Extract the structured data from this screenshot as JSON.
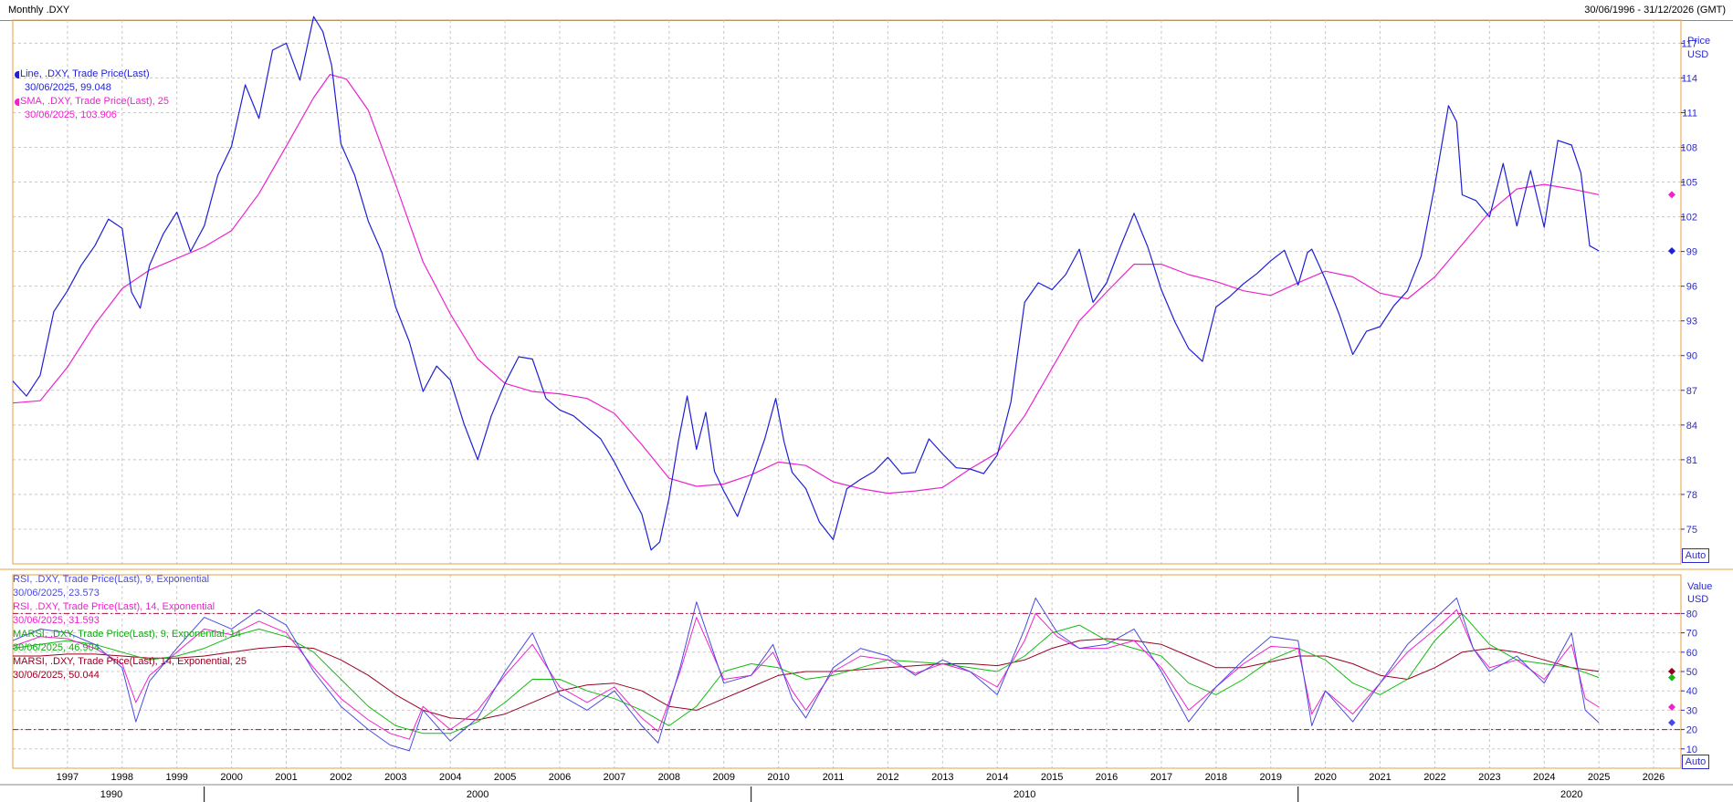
{
  "header": {
    "title": "Monthly .DXY",
    "date_range": "30/06/1996 - 31/12/2026 (GMT)"
  },
  "colors": {
    "price_line": "#1f1fd6",
    "sma_line": "#ee22cc",
    "rsi9": "#4a4ae0",
    "rsi14": "#ee22cc",
    "marsi9": "#11bb11",
    "marsi14": "#990022",
    "reference_lines": "#aa1144",
    "accent": "#2a2ad0"
  },
  "price_panel": {
    "axis_title": "Price",
    "axis_unit": "USD",
    "auto_label": "Auto",
    "legend": [
      {
        "name": "Line, .DXY, Trade Price(Last)",
        "value": "30/06/2025, 99.048"
      },
      {
        "name": "SMA, .DXY, Trade Price(Last),  25",
        "value": "30/06/2025, 103.906"
      }
    ]
  },
  "indicator_panel": {
    "axis_title": "Value",
    "axis_unit": "USD",
    "auto_label": "Auto",
    "legend": [
      {
        "name": "RSI, .DXY, Trade Price(Last),  9, Exponential",
        "value": "30/06/2025, 23.573"
      },
      {
        "name": "RSI, .DXY, Trade Price(Last),  14, Exponential",
        "value": "30/06/2025, 31.593"
      },
      {
        "name": "MARSI, .DXY, Trade Price(Last),  9, Exponential, 14",
        "value": "30/06/2025, 46.904"
      },
      {
        "name": "MARSI, .DXY, Trade Price(Last),  14, Exponential, 25",
        "value": "30/06/2025, 50.044"
      }
    ]
  },
  "chart_data": [
    {
      "type": "line",
      "title": "Monthly .DXY",
      "ylabel": "Price USD",
      "ylim": [
        72,
        119
      ],
      "yticks": [
        75,
        78,
        81,
        84,
        87,
        90,
        93,
        96,
        99,
        102,
        105,
        108,
        111,
        114,
        117
      ],
      "xlim": [
        1996.5,
        2027.0
      ],
      "grid": true,
      "legend_position": "top-left",
      "series": [
        {
          "name": "Line, .DXY, Trade Price(Last)",
          "x": [
            1996.5,
            1996.75,
            1997.0,
            1997.25,
            1997.5,
            1997.75,
            1998.0,
            1998.25,
            1998.5,
            1998.67,
            1998.83,
            1999.0,
            1999.25,
            1999.5,
            1999.75,
            2000.0,
            2000.25,
            2000.5,
            2000.75,
            2001.0,
            2001.25,
            2001.5,
            2001.75,
            2002.0,
            2002.17,
            2002.33,
            2002.5,
            2002.75,
            2003.0,
            2003.25,
            2003.5,
            2003.75,
            2004.0,
            2004.25,
            2004.5,
            2004.75,
            2005.0,
            2005.25,
            2005.5,
            2005.75,
            2006.0,
            2006.25,
            2006.5,
            2006.75,
            2007.0,
            2007.25,
            2007.5,
            2007.75,
            2008.0,
            2008.17,
            2008.33,
            2008.5,
            2008.67,
            2008.83,
            2009.0,
            2009.17,
            2009.33,
            2009.5,
            2009.75,
            2010.0,
            2010.25,
            2010.45,
            2010.6,
            2010.75,
            2011.0,
            2011.25,
            2011.5,
            2011.75,
            2012.0,
            2012.25,
            2012.5,
            2012.75,
            2013.0,
            2013.25,
            2013.5,
            2013.75,
            2014.0,
            2014.25,
            2014.5,
            2014.75,
            2015.0,
            2015.25,
            2015.5,
            2015.75,
            2016.0,
            2016.25,
            2016.5,
            2016.75,
            2017.0,
            2017.25,
            2017.5,
            2017.75,
            2018.0,
            2018.25,
            2018.5,
            2018.75,
            2019.0,
            2019.25,
            2019.5,
            2019.75,
            2020.0,
            2020.17,
            2020.25,
            2020.5,
            2020.75,
            2021.0,
            2021.25,
            2021.5,
            2021.75,
            2022.0,
            2022.25,
            2022.5,
            2022.75,
            2022.9,
            2023.0,
            2023.25,
            2023.5,
            2023.75,
            2024.0,
            2024.25,
            2024.5,
            2024.75,
            2025.0,
            2025.17,
            2025.33,
            2025.5
          ],
          "y": [
            87.8,
            86.5,
            88.3,
            93.8,
            95.6,
            97.8,
            99.5,
            101.8,
            101.0,
            95.5,
            94.1,
            97.8,
            100.5,
            102.4,
            99.0,
            101.2,
            105.6,
            108.1,
            113.4,
            110.5,
            116.4,
            117.0,
            113.8,
            119.3,
            118.0,
            115.1,
            108.3,
            105.6,
            101.6,
            98.9,
            94.2,
            91.2,
            86.9,
            89.1,
            87.9,
            84.1,
            81.0,
            84.8,
            87.6,
            89.9,
            89.7,
            86.3,
            85.3,
            84.8,
            83.8,
            82.8,
            80.8,
            78.5,
            76.3,
            73.2,
            73.9,
            77.7,
            82.6,
            86.5,
            81.9,
            85.1,
            80.0,
            78.3,
            76.1,
            79.4,
            82.8,
            86.3,
            82.6,
            79.9,
            78.5,
            75.6,
            74.1,
            78.5,
            79.3,
            80.0,
            81.2,
            79.8,
            79.9,
            82.8,
            81.5,
            80.3,
            80.2,
            79.8,
            81.4,
            86.0,
            94.6,
            96.3,
            95.7,
            97.0,
            99.2,
            94.6,
            96.3,
            99.4,
            102.3,
            99.4,
            95.7,
            92.9,
            90.6,
            89.5,
            94.2,
            95.1,
            96.2,
            97.1,
            98.2,
            99.1,
            96.1,
            98.9,
            99.2,
            96.6,
            93.6,
            90.1,
            92.1,
            92.5,
            94.3,
            95.6,
            98.6,
            104.7,
            111.6,
            110.2,
            103.9,
            103.4,
            102.0,
            106.6,
            101.2,
            106.0,
            101.1,
            108.6,
            108.2,
            105.8,
            99.5,
            99.048
          ]
        },
        {
          "name": "SMA, .DXY, Trade Price(Last),  25",
          "x": [
            1996.5,
            1997.0,
            1997.5,
            1998.0,
            1998.5,
            1999.0,
            1999.5,
            2000.0,
            2000.5,
            2001.0,
            2001.5,
            2002.0,
            2002.3,
            2002.6,
            2003.0,
            2003.5,
            2004.0,
            2004.5,
            2005.0,
            2005.5,
            2006.0,
            2006.5,
            2007.0,
            2007.5,
            2008.0,
            2008.5,
            2009.0,
            2009.5,
            2010.0,
            2010.5,
            2011.0,
            2011.5,
            2012.0,
            2012.5,
            2013.0,
            2013.5,
            2014.0,
            2014.5,
            2015.0,
            2015.5,
            2016.0,
            2016.5,
            2017.0,
            2017.5,
            2018.0,
            2018.5,
            2019.0,
            2019.5,
            2020.0,
            2020.5,
            2021.0,
            2021.5,
            2022.0,
            2022.5,
            2023.0,
            2023.5,
            2024.0,
            2024.5,
            2025.0,
            2025.5
          ],
          "y": [
            85.9,
            86.1,
            89.0,
            92.7,
            95.8,
            97.4,
            98.4,
            99.4,
            100.8,
            104.0,
            108.1,
            112.3,
            114.3,
            113.9,
            111.2,
            104.8,
            98.1,
            93.6,
            89.7,
            87.6,
            86.9,
            86.7,
            86.3,
            85.0,
            82.3,
            79.4,
            78.7,
            78.9,
            79.7,
            80.8,
            80.5,
            79.1,
            78.5,
            78.1,
            78.3,
            78.6,
            80.2,
            81.6,
            84.8,
            88.9,
            93.0,
            95.5,
            97.9,
            97.9,
            97.0,
            96.4,
            95.6,
            95.2,
            96.3,
            97.3,
            96.8,
            95.4,
            94.9,
            96.8,
            99.6,
            102.4,
            104.4,
            104.8,
            104.4,
            103.906
          ]
        }
      ]
    },
    {
      "type": "line",
      "ylabel": "Value USD",
      "ylim": [
        0,
        100
      ],
      "yticks": [
        10,
        20,
        30,
        40,
        50,
        60,
        70,
        80
      ],
      "reference_lines": [
        20,
        80
      ],
      "xlim": [
        1996.5,
        2027.0
      ],
      "x_tick_labels": [
        "1997",
        "1998",
        "1999",
        "2000",
        "2001",
        "2002",
        "2003",
        "2004",
        "2005",
        "2006",
        "2007",
        "2008",
        "2009",
        "2010",
        "2011",
        "2012",
        "2013",
        "2014",
        "2015",
        "2016",
        "2017",
        "2018",
        "2019",
        "2020",
        "2021",
        "2022",
        "2023",
        "2024",
        "2025",
        "2026"
      ],
      "x_decade_labels": [
        "1990",
        "2000",
        "2010",
        "2020"
      ],
      "grid": true,
      "legend_position": "top-left",
      "series": [
        {
          "name": "RSI, .DXY, Trade Price(Last),  9, Exponential",
          "x": [
            1996.5,
            1997.0,
            1997.5,
            1998.0,
            1998.5,
            1998.75,
            1999.0,
            1999.5,
            2000.0,
            2000.5,
            2001.0,
            2001.5,
            2002.0,
            2002.5,
            2003.0,
            2003.4,
            2003.75,
            2004.0,
            2004.5,
            2005.0,
            2005.5,
            2006.0,
            2006.5,
            2007.0,
            2007.5,
            2008.0,
            2008.3,
            2008.7,
            2009.0,
            2009.5,
            2010.0,
            2010.4,
            2010.75,
            2011.0,
            2011.5,
            2012.0,
            2012.5,
            2013.0,
            2013.5,
            2014.0,
            2014.5,
            2015.0,
            2015.2,
            2015.6,
            2016.0,
            2016.5,
            2017.0,
            2017.5,
            2018.0,
            2018.5,
            2019.0,
            2019.5,
            2020.0,
            2020.25,
            2020.5,
            2021.0,
            2021.5,
            2022.0,
            2022.6,
            2022.9,
            2023.2,
            2023.5,
            2024.0,
            2024.5,
            2025.0,
            2025.25,
            2025.5
          ],
          "y": [
            66,
            72,
            70,
            64,
            52,
            24,
            45,
            62,
            78,
            72,
            82,
            74,
            50,
            32,
            20,
            12,
            9,
            30,
            14,
            26,
            50,
            70,
            38,
            30,
            40,
            22,
            13,
            52,
            86,
            44,
            48,
            64,
            36,
            26,
            52,
            62,
            58,
            48,
            56,
            50,
            38,
            72,
            88,
            70,
            62,
            64,
            72,
            50,
            24,
            42,
            56,
            68,
            66,
            22,
            40,
            24,
            44,
            64,
            80,
            88,
            62,
            50,
            58,
            44,
            70,
            30,
            23.573
          ]
        },
        {
          "name": "RSI, .DXY, Trade Price(Last),  14, Exponential",
          "x": [
            1996.5,
            1997.0,
            1997.5,
            1998.0,
            1998.5,
            1998.75,
            1999.0,
            1999.5,
            2000.0,
            2000.5,
            2001.0,
            2001.5,
            2002.0,
            2002.5,
            2003.0,
            2003.4,
            2003.75,
            2004.0,
            2004.5,
            2005.0,
            2005.5,
            2006.0,
            2006.5,
            2007.0,
            2007.5,
            2008.0,
            2008.3,
            2008.7,
            2009.0,
            2009.5,
            2010.0,
            2010.4,
            2010.75,
            2011.0,
            2011.5,
            2012.0,
            2012.5,
            2013.0,
            2013.5,
            2014.0,
            2014.5,
            2015.0,
            2015.2,
            2015.6,
            2016.0,
            2016.5,
            2017.0,
            2017.5,
            2018.0,
            2018.5,
            2019.0,
            2019.5,
            2020.0,
            2020.25,
            2020.5,
            2021.0,
            2021.5,
            2022.0,
            2022.6,
            2022.9,
            2023.2,
            2023.5,
            2024.0,
            2024.5,
            2025.0,
            2025.25,
            2025.5
          ],
          "y": [
            63,
            68,
            67,
            62,
            54,
            34,
            48,
            60,
            72,
            69,
            76,
            70,
            52,
            36,
            25,
            18,
            15,
            32,
            20,
            30,
            48,
            64,
            42,
            34,
            42,
            26,
            19,
            50,
            78,
            46,
            48,
            60,
            40,
            30,
            50,
            58,
            56,
            49,
            54,
            50,
            42,
            66,
            80,
            68,
            62,
            62,
            66,
            52,
            30,
            42,
            54,
            63,
            62,
            28,
            40,
            28,
            44,
            60,
            74,
            82,
            62,
            52,
            56,
            46,
            64,
            36,
            31.593
          ]
        },
        {
          "name": "MARSI, .DXY, Trade Price(Last),  9, Exponential, 14",
          "x": [
            1996.5,
            1997.0,
            1997.5,
            1998.0,
            1998.5,
            1999.0,
            1999.5,
            2000.0,
            2000.5,
            2001.0,
            2001.5,
            2002.0,
            2002.5,
            2003.0,
            2003.5,
            2004.0,
            2004.5,
            2005.0,
            2005.5,
            2006.0,
            2006.5,
            2007.0,
            2007.5,
            2008.0,
            2008.5,
            2009.0,
            2009.5,
            2010.0,
            2010.5,
            2011.0,
            2011.5,
            2012.0,
            2012.5,
            2013.0,
            2013.5,
            2014.0,
            2014.5,
            2015.0,
            2015.5,
            2016.0,
            2016.5,
            2017.0,
            2017.5,
            2018.0,
            2018.5,
            2019.0,
            2019.5,
            2020.0,
            2020.5,
            2021.0,
            2021.5,
            2022.0,
            2022.5,
            2023.0,
            2023.5,
            2024.0,
            2024.5,
            2025.0,
            2025.5
          ],
          "y": [
            62,
            64,
            66,
            64,
            60,
            56,
            58,
            62,
            68,
            72,
            68,
            60,
            46,
            32,
            22,
            18,
            18,
            24,
            34,
            46,
            46,
            40,
            36,
            30,
            22,
            32,
            50,
            54,
            52,
            46,
            48,
            52,
            56,
            55,
            54,
            52,
            50,
            58,
            70,
            74,
            66,
            62,
            58,
            44,
            38,
            46,
            56,
            62,
            56,
            44,
            38,
            46,
            66,
            80,
            64,
            56,
            54,
            52,
            46.904
          ]
        },
        {
          "name": "MARSI, .DXY, Trade Price(Last),  14, Exponential, 25",
          "x": [
            1996.5,
            1997.0,
            1997.5,
            1998.0,
            1998.5,
            1999.0,
            1999.5,
            2000.0,
            2000.5,
            2001.0,
            2001.5,
            2002.0,
            2002.5,
            2003.0,
            2003.5,
            2004.0,
            2004.5,
            2005.0,
            2005.5,
            2006.0,
            2006.5,
            2007.0,
            2007.5,
            2008.0,
            2008.5,
            2009.0,
            2009.5,
            2010.0,
            2010.5,
            2011.0,
            2011.5,
            2012.0,
            2012.5,
            2013.0,
            2013.5,
            2014.0,
            2014.5,
            2015.0,
            2015.5,
            2016.0,
            2016.5,
            2017.0,
            2017.5,
            2018.0,
            2018.5,
            2019.0,
            2019.5,
            2020.0,
            2020.5,
            2021.0,
            2021.5,
            2022.0,
            2022.5,
            2023.0,
            2023.5,
            2024.0,
            2024.5,
            2025.0,
            2025.5
          ],
          "y": [
            58,
            58,
            59,
            59,
            58,
            57,
            57,
            58,
            60,
            62,
            63,
            62,
            56,
            48,
            38,
            30,
            26,
            25,
            28,
            34,
            40,
            43,
            44,
            40,
            32,
            30,
            36,
            42,
            48,
            50,
            50,
            51,
            52,
            53,
            54,
            54,
            53,
            56,
            62,
            66,
            67,
            66,
            64,
            58,
            52,
            52,
            55,
            58,
            58,
            54,
            48,
            46,
            52,
            60,
            62,
            60,
            56,
            52,
            50.044
          ]
        }
      ]
    }
  ]
}
